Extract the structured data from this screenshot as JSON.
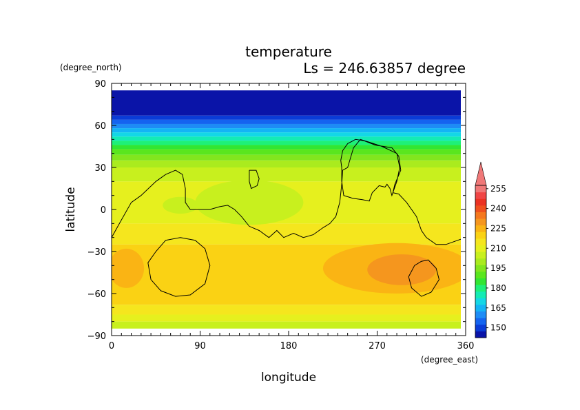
{
  "chart_data": {
    "type": "heatmap",
    "title": "temperature",
    "subtitle": "Ls = 246.63857 degree",
    "xlabel": "longitude",
    "ylabel": "latitude",
    "x_unit": "(degree_east)",
    "y_unit": "(degree_north)",
    "xlim": [
      0,
      360
    ],
    "ylim": [
      -90,
      90
    ],
    "x_ticks": [
      0,
      90,
      180,
      270,
      360
    ],
    "y_ticks": [
      -90,
      -60,
      -30,
      0,
      30,
      60,
      90
    ],
    "colorbar": {
      "levels": [
        145,
        150,
        155,
        160,
        165,
        170,
        175,
        180,
        185,
        190,
        195,
        200,
        205,
        210,
        215,
        220,
        225,
        230,
        235,
        240,
        245,
        250,
        255,
        260
      ],
      "colors": [
        "#0a14a8",
        "#0a3cd7",
        "#1464f0",
        "#1e8cf5",
        "#14b4f5",
        "#14d7e6",
        "#14ebb4",
        "#1ef078",
        "#32e632",
        "#5ae61e",
        "#82e61e",
        "#aaeb1e",
        "#c8f01e",
        "#e6f01e",
        "#f5e61e",
        "#fad214",
        "#fab414",
        "#f5961e",
        "#f5781e",
        "#f0501e",
        "#eb3223",
        "#f04646",
        "#f07878"
      ],
      "tick_labels": [
        "150",
        "165",
        "180",
        "195",
        "210",
        "225",
        "240",
        "255"
      ],
      "extend": "max"
    },
    "bands": [
      {
        "lat_top": 85,
        "lat_bottom": 67,
        "value": 148
      },
      {
        "lat_top": 67,
        "lat_bottom": 64,
        "value": 153
      },
      {
        "lat_top": 64,
        "lat_bottom": 61,
        "value": 158
      },
      {
        "lat_top": 61,
        "lat_bottom": 58,
        "value": 163
      },
      {
        "lat_top": 58,
        "lat_bottom": 55,
        "value": 168
      },
      {
        "lat_top": 55,
        "lat_bottom": 52,
        "value": 173
      },
      {
        "lat_top": 52,
        "lat_bottom": 49,
        "value": 178
      },
      {
        "lat_top": 49,
        "lat_bottom": 46,
        "value": 183
      },
      {
        "lat_top": 46,
        "lat_bottom": 43,
        "value": 188
      },
      {
        "lat_top": 43,
        "lat_bottom": 39,
        "value": 193
      },
      {
        "lat_top": 39,
        "lat_bottom": 35,
        "value": 198
      },
      {
        "lat_top": 35,
        "lat_bottom": 30,
        "value": 203
      },
      {
        "lat_top": 30,
        "lat_bottom": 20,
        "value": 209
      },
      {
        "lat_top": 20,
        "lat_bottom": -10,
        "value": 213
      },
      {
        "lat_top": -10,
        "lat_bottom": -25,
        "value": 218
      },
      {
        "lat_top": -25,
        "lat_bottom": -68,
        "value": 222
      },
      {
        "lat_top": -68,
        "lat_bottom": -75,
        "value": 218
      },
      {
        "lat_top": -75,
        "lat_bottom": -80,
        "value": 213
      },
      {
        "lat_top": -80,
        "lat_bottom": -85,
        "value": 208
      }
    ],
    "patches": [
      {
        "kind": "ellipse",
        "lon": 290,
        "lat": -42,
        "rlon": 75,
        "rlat": 18,
        "value": 228
      },
      {
        "kind": "ellipse",
        "lon": 295,
        "lat": -43,
        "rlon": 35,
        "rlat": 11,
        "value": 233
      },
      {
        "kind": "ellipse",
        "lon": 15,
        "lat": -42,
        "rlon": 18,
        "rlat": 14,
        "value": 228
      },
      {
        "kind": "ellipse",
        "lon": 140,
        "lat": 5,
        "rlon": 55,
        "rlat": 16,
        "value": 209
      },
      {
        "kind": "ellipse",
        "lon": 70,
        "lat": 3,
        "rlon": 18,
        "rlat": 6,
        "value": 209
      }
    ],
    "contours": [
      {
        "name": "topography-0-line",
        "points": [
          [
            0,
            -20
          ],
          [
            8,
            -10
          ],
          [
            20,
            5
          ],
          [
            30,
            10
          ],
          [
            45,
            20
          ],
          [
            55,
            25
          ],
          [
            65,
            28
          ],
          [
            72,
            25
          ],
          [
            75,
            15
          ],
          [
            75,
            5
          ],
          [
            80,
            0
          ],
          [
            90,
            0
          ],
          [
            100,
            0
          ],
          [
            110,
            2
          ],
          [
            118,
            3
          ],
          [
            125,
            0
          ],
          [
            132,
            -5
          ],
          [
            140,
            -12
          ],
          [
            150,
            -15
          ],
          [
            160,
            -20
          ],
          [
            168,
            -15
          ],
          [
            175,
            -20
          ],
          [
            185,
            -17
          ],
          [
            195,
            -20
          ],
          [
            205,
            -18
          ],
          [
            215,
            -13
          ],
          [
            222,
            -10
          ],
          [
            228,
            -5
          ],
          [
            232,
            5
          ],
          [
            234,
            18
          ],
          [
            235,
            28
          ],
          [
            240,
            30
          ],
          [
            246,
            44
          ],
          [
            253,
            50
          ],
          [
            262,
            48
          ],
          [
            275,
            45
          ],
          [
            290,
            40
          ],
          [
            293,
            30
          ],
          [
            290,
            20
          ],
          [
            285,
            10
          ],
          [
            283,
            15
          ],
          [
            280,
            18
          ],
          [
            278,
            16
          ],
          [
            272,
            17
          ],
          [
            265,
            12
          ],
          [
            262,
            6
          ],
          [
            255,
            7
          ],
          [
            245,
            8
          ],
          [
            236,
            10
          ],
          [
            234,
            20
          ],
          [
            234,
            30
          ],
          [
            233,
            35
          ],
          [
            235,
            42
          ],
          [
            240,
            47
          ],
          [
            248,
            50
          ],
          [
            257,
            49
          ],
          [
            268,
            46
          ],
          [
            285,
            44
          ],
          [
            292,
            38
          ],
          [
            294,
            28
          ],
          [
            288,
            18
          ],
          [
            286,
            12
          ],
          [
            292,
            11
          ],
          [
            300,
            5
          ],
          [
            310,
            -5
          ],
          [
            315,
            -15
          ],
          [
            320,
            -20
          ],
          [
            330,
            -25
          ],
          [
            340,
            -25
          ],
          [
            352,
            -22
          ],
          [
            360,
            -20
          ]
        ]
      },
      {
        "name": "crater-contour-west",
        "points": [
          [
            70,
            -20
          ],
          [
            85,
            -22
          ],
          [
            95,
            -28
          ],
          [
            100,
            -40
          ],
          [
            95,
            -53
          ],
          [
            80,
            -61
          ],
          [
            65,
            -62
          ],
          [
            50,
            -58
          ],
          [
            40,
            -50
          ],
          [
            37,
            -38
          ],
          [
            45,
            -30
          ],
          [
            55,
            -22
          ],
          [
            70,
            -20
          ]
        ]
      },
      {
        "name": "crater-contour-east",
        "points": [
          [
            315,
            -37
          ],
          [
            322,
            -36
          ],
          [
            330,
            -42
          ],
          [
            333,
            -50
          ],
          [
            325,
            -59
          ],
          [
            315,
            -62
          ],
          [
            305,
            -56
          ],
          [
            302,
            -48
          ],
          [
            308,
            -40
          ],
          [
            315,
            -37
          ]
        ]
      },
      {
        "name": "small-contour-north",
        "points": [
          [
            140,
            28
          ],
          [
            147,
            28
          ],
          [
            150,
            22
          ],
          [
            148,
            17
          ],
          [
            142,
            15
          ],
          [
            140,
            20
          ],
          [
            140,
            28
          ]
        ]
      }
    ]
  }
}
